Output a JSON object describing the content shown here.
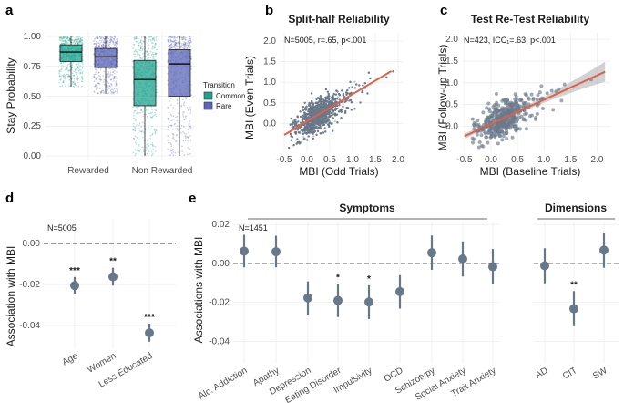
{
  "panels": {
    "a": "a",
    "b": "b",
    "c": "c",
    "d": "d",
    "e": "e"
  },
  "colors": {
    "common": "#1fa38f",
    "rare": "#5b67b8",
    "scatter": "#6b7a8a",
    "fit": "#e0604a",
    "dot": "#66788a",
    "band": "#bfbfbf"
  },
  "chart_data": [
    {
      "id": "a",
      "type": "box",
      "title": "",
      "xlabel": "",
      "ylabel": "Stay Probability",
      "ylim": [
        0,
        1
      ],
      "yticks": [
        0.0,
        0.25,
        0.5,
        0.75,
        1.0
      ],
      "yticklabels": [
        "0.00",
        "0.25",
        "0.50",
        "0.75",
        "1.00"
      ],
      "categories": [
        "Rewarded",
        "Non Rewarded"
      ],
      "legend": {
        "title": "Transition",
        "entries": [
          "Common",
          "Rare"
        ]
      },
      "series": [
        {
          "name": "Common",
          "boxes": [
            {
              "q1": 0.79,
              "median": 0.87,
              "q3": 0.93,
              "whisker_low": 0.58,
              "whisker_high": 1.0
            },
            {
              "q1": 0.42,
              "median": 0.64,
              "q3": 0.8,
              "whisker_low": 0.0,
              "whisker_high": 1.0
            }
          ]
        },
        {
          "name": "Rare",
          "boxes": [
            {
              "q1": 0.74,
              "median": 0.83,
              "q3": 0.9,
              "whisker_low": 0.52,
              "whisker_high": 1.0
            },
            {
              "q1": 0.5,
              "median": 0.77,
              "q3": 0.89,
              "whisker_low": 0.0,
              "whisker_high": 1.0
            }
          ]
        }
      ]
    },
    {
      "id": "b",
      "type": "scatter",
      "title": "Split-half Reliability",
      "xlabel": "MBI (Odd Trials)",
      "ylabel": "MBI (Even Trials)",
      "xlim": [
        -0.6,
        2.1
      ],
      "ylim": [
        -0.7,
        2.2
      ],
      "xticks": [
        -0.5,
        0.0,
        0.5,
        1.0,
        1.5,
        2.0
      ],
      "xticklabels": [
        "-0.5",
        "0.0",
        "0.5",
        "1.0",
        "1.5",
        "2.0"
      ],
      "yticks": [
        0.0,
        0.5,
        1.0,
        1.5,
        2.0
      ],
      "yticklabels": [
        "0.0",
        "0.5",
        "1.0",
        "1.5",
        "2.0"
      ],
      "annotation": "N=5005, r=.65, p<.001",
      "n_points": 5005,
      "fit": {
        "intercept": 0.05,
        "slope": 0.66,
        "x_range": [
          -0.5,
          1.85
        ]
      }
    },
    {
      "id": "c",
      "type": "scatter",
      "title": "Test Re-Test Reliability",
      "xlabel": "MBI (Baseline Trials)",
      "ylabel": "MBI (Follow-up Trials)",
      "xlim": [
        -0.55,
        2.25
      ],
      "ylim": [
        -0.6,
        2.15
      ],
      "xticks": [
        -0.5,
        0.0,
        0.5,
        1.0,
        1.5,
        2.0
      ],
      "xticklabels": [
        "-0.5",
        "0.0",
        "0.5",
        "1.0",
        "1.5",
        "2.0"
      ],
      "yticks": [
        0.0,
        0.5,
        1.0,
        1.5,
        2.0
      ],
      "yticklabels": [
        "0.0",
        "0.5",
        "1.0",
        "1.5",
        "2.0"
      ],
      "annotation": "N=423, ICC₁=.63, p<.001",
      "n_points": 423,
      "fit": {
        "intercept": 0.05,
        "slope": 0.56,
        "x_range": [
          -0.5,
          2.15
        ]
      }
    },
    {
      "id": "d",
      "type": "pointrange",
      "title": "",
      "xlabel": "",
      "ylabel": "Association with MBI",
      "ylim": [
        -0.051,
        0.012
      ],
      "yticks": [
        -0.04,
        -0.02,
        0.0
      ],
      "yticklabels": [
        "-0.04",
        "-0.02",
        "0.00"
      ],
      "annotation": "N=5005",
      "categories": [
        "Age",
        "Women",
        "Less Educated"
      ],
      "estimates": [
        -0.0205,
        -0.0162,
        -0.0435
      ],
      "ci_low": [
        -0.0245,
        -0.0205,
        -0.0478
      ],
      "ci_high": [
        -0.0163,
        -0.0118,
        -0.039
      ],
      "stars": [
        "***",
        "**",
        "***"
      ]
    },
    {
      "id": "e",
      "type": "pointrange",
      "title": "",
      "xlabel": "",
      "ylabel": "Associations with MBI",
      "ylim": [
        -0.051,
        0.021
      ],
      "yticks": [
        -0.04,
        -0.02,
        0.0,
        0.02
      ],
      "yticklabels": [
        "-0.04",
        "-0.02",
        "0.00",
        "0.02"
      ],
      "annotation": "N=1451",
      "groups": [
        {
          "label": "Symptoms",
          "categories": [
            "Alc. Addiction",
            "Apathy",
            "Depression",
            "Eating Disorder",
            "Impulsivity",
            "OCD",
            "Schizotypy",
            "Social Anxiety",
            "Trait Anxiety"
          ],
          "estimates": [
            0.0063,
            0.006,
            -0.0177,
            -0.019,
            -0.0198,
            -0.0145,
            0.0055,
            0.0023,
            -0.0017
          ],
          "ci_low": [
            -0.002,
            -0.002,
            -0.0263,
            -0.0275,
            -0.0285,
            -0.0232,
            -0.0033,
            -0.0067,
            -0.0108
          ],
          "ci_high": [
            0.0147,
            0.0142,
            -0.0092,
            -0.0105,
            -0.0112,
            -0.006,
            0.0143,
            0.0113,
            0.0074
          ],
          "stars": [
            "",
            "",
            "",
            "*",
            "*",
            "",
            "",
            "",
            ""
          ]
        },
        {
          "label": "Dimensions",
          "categories": [
            "AD",
            "CIT",
            "SW"
          ],
          "estimates": [
            -0.0012,
            -0.0232,
            0.0068
          ],
          "ci_low": [
            -0.0102,
            -0.0322,
            -0.0022
          ],
          "ci_high": [
            0.0078,
            -0.0142,
            0.0158
          ],
          "stars": [
            "",
            "**",
            ""
          ]
        }
      ]
    }
  ]
}
